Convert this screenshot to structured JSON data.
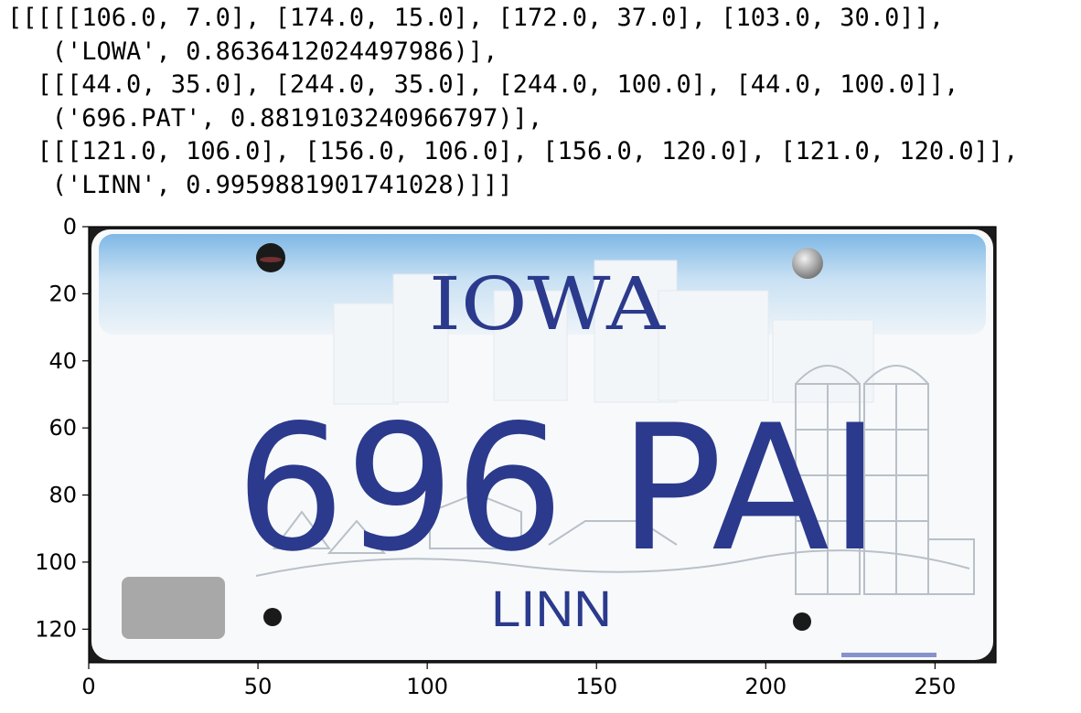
{
  "output": {
    "lines": [
      "[[[[[106.0, 7.0], [174.0, 15.0], [172.0, 37.0], [103.0, 30.0]],",
      "   ('LOWA', 0.8636412024497986)],",
      "  [[[44.0, 35.0], [244.0, 35.0], [244.0, 100.0], [44.0, 100.0]],",
      "   ('696.PAT', 0.8819103240966797)],",
      "  [[[121.0, 106.0], [156.0, 106.0], [156.0, 120.0], [121.0, 120.0]],",
      "   ('LINN', 0.9959881901741028)]]]"
    ]
  },
  "plot": {
    "x_ticks": [
      {
        "value": 0,
        "label": "0"
      },
      {
        "value": 50,
        "label": "50"
      },
      {
        "value": 100,
        "label": "100"
      },
      {
        "value": 150,
        "label": "150"
      },
      {
        "value": 200,
        "label": "200"
      },
      {
        "value": 250,
        "label": "250"
      }
    ],
    "y_ticks": [
      {
        "value": 0,
        "label": "0"
      },
      {
        "value": 20,
        "label": "20"
      },
      {
        "value": 40,
        "label": "40"
      },
      {
        "value": 60,
        "label": "60"
      },
      {
        "value": 80,
        "label": "80"
      },
      {
        "value": 100,
        "label": "100"
      },
      {
        "value": 120,
        "label": "120"
      }
    ],
    "x_range": [
      0,
      268
    ],
    "y_range": [
      0,
      130
    ]
  },
  "plate": {
    "state": "IOWA",
    "number": "696 PAI",
    "county": "LINN",
    "colors": {
      "sky_top": "#7fb8e6",
      "sky_mid": "#c9e1f3",
      "lettering": "#2b3a8c",
      "scenery": "#b9c0c8",
      "sticker": "#a8a8a8",
      "bolt": "#1a1a1a"
    }
  }
}
